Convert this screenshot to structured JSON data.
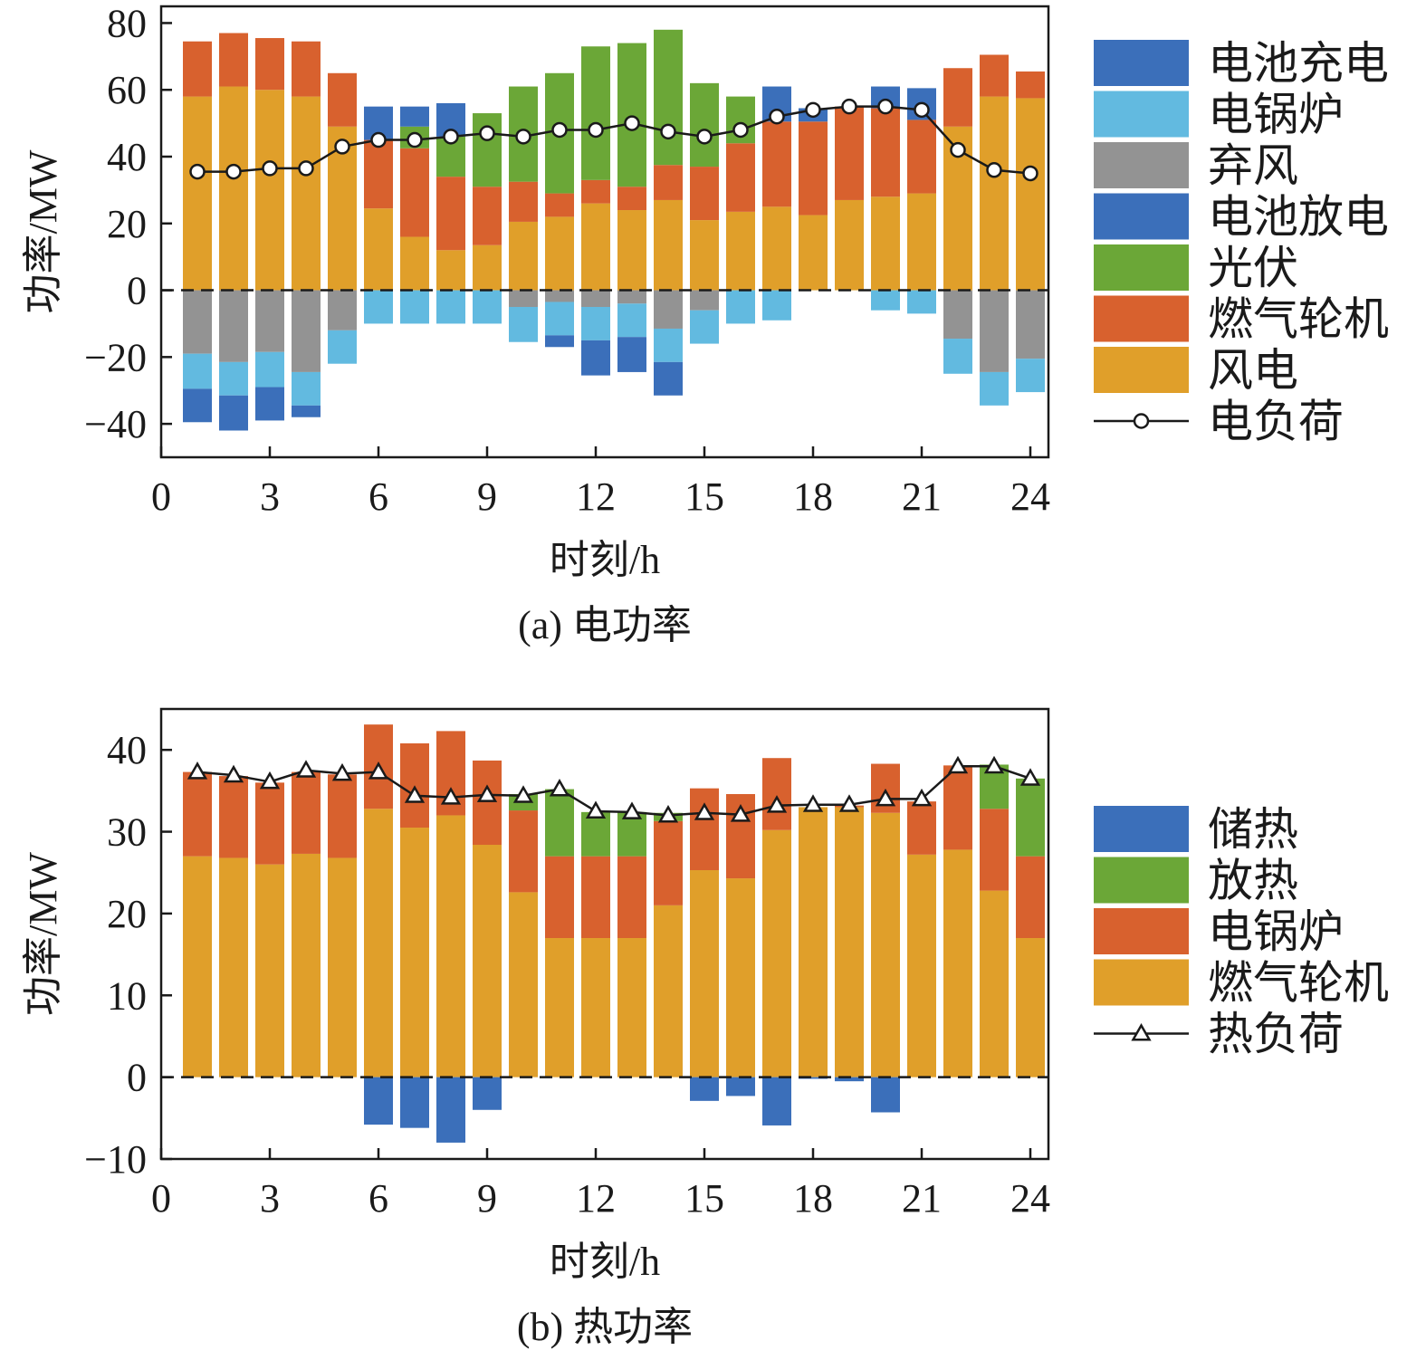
{
  "chart_data": [
    {
      "type": "bar",
      "stacked": true,
      "caption": "(a) 电功率",
      "xlabel": "时刻/h",
      "ylabel": "功率/MW",
      "xlim": [
        0,
        24.5
      ],
      "ylim": [
        -50,
        85
      ],
      "xticks": [
        0,
        3,
        6,
        9,
        12,
        15,
        18,
        21,
        24
      ],
      "yticks": [
        -40,
        -20,
        0,
        20,
        40,
        60,
        80
      ],
      "grid": false,
      "legend_position": "right",
      "x": [
        1,
        2,
        3,
        4,
        5,
        6,
        7,
        8,
        9,
        10,
        11,
        12,
        13,
        14,
        15,
        16,
        17,
        18,
        19,
        20,
        21,
        22,
        23,
        24
      ],
      "positive_series": [
        {
          "name": "风电",
          "color": "#E09F2A",
          "values": [
            58,
            61,
            60,
            58,
            49,
            24.5,
            16,
            12,
            13.5,
            20.5,
            22,
            26,
            24,
            27,
            21,
            23.5,
            25,
            22.5,
            27,
            28,
            29,
            49,
            58,
            57.5
          ]
        },
        {
          "name": "燃气轮机",
          "color": "#D8612E",
          "values": [
            16.5,
            16,
            15.5,
            16.5,
            16,
            20.5,
            26.5,
            22,
            17.5,
            12,
            7,
            7,
            7,
            10.5,
            16,
            20.5,
            25.5,
            28,
            28,
            26.5,
            22,
            17.5,
            12.5,
            8
          ]
        },
        {
          "name": "光伏",
          "color": "#6BA737",
          "values": [
            0,
            0,
            0,
            0,
            0,
            0,
            6.5,
            12,
            22,
            28.5,
            36,
            40,
            43,
            40.5,
            25,
            14,
            0,
            0,
            0,
            0,
            0,
            0,
            0,
            0
          ]
        },
        {
          "name": "电池放电",
          "color": "#3B6FBA",
          "values": [
            0,
            0,
            0,
            0,
            0,
            10,
            6,
            10,
            0,
            0,
            0,
            0,
            0,
            0,
            0,
            0,
            10.5,
            4,
            0,
            6.5,
            9.5,
            0,
            0,
            0
          ]
        }
      ],
      "negative_series": [
        {
          "name": "弃风",
          "color": "#939393",
          "values": [
            -19,
            -21.5,
            -18.5,
            -24.5,
            -12,
            0,
            0,
            0,
            0,
            -5,
            -3.5,
            -5,
            -4,
            -11.5,
            -6,
            0,
            0,
            0,
            0,
            0,
            0,
            -14.5,
            -24.5,
            -20.5
          ]
        },
        {
          "name": "电锅炉",
          "color": "#62BAE0",
          "values": [
            -10.5,
            -10,
            -10.5,
            -10,
            -10,
            -10,
            -10,
            -10,
            -10,
            -10.5,
            -10,
            -10,
            -10,
            -10,
            -10,
            -10,
            -9,
            0,
            0,
            -6,
            -7,
            -10.5,
            -10,
            -10
          ]
        },
        {
          "name": "电池充电",
          "color": "#3B6FBA",
          "values": [
            -10,
            -10.5,
            -10,
            -3.5,
            0,
            0,
            0,
            0,
            0,
            0,
            -3.5,
            -10.5,
            -10.5,
            -10,
            0,
            0,
            0,
            0,
            0,
            0,
            0,
            0,
            0,
            0
          ]
        }
      ],
      "line_series": {
        "name": "电负荷",
        "marker": "circle",
        "values": [
          35.5,
          35.5,
          36.5,
          36.5,
          43,
          45,
          45,
          46,
          47,
          46,
          48,
          48,
          50,
          47.5,
          46,
          48,
          52,
          54,
          55,
          55,
          54,
          42,
          36,
          35
        ]
      },
      "legend": [
        {
          "label": "电池充电",
          "kind": "patch",
          "color": "#3B6FBA"
        },
        {
          "label": "电锅炉",
          "kind": "patch",
          "color": "#62BAE0"
        },
        {
          "label": "弃风",
          "kind": "patch",
          "color": "#939393"
        },
        {
          "label": "电池放电",
          "kind": "patch",
          "color": "#3B6FBA"
        },
        {
          "label": "光伏",
          "kind": "patch",
          "color": "#6BA737"
        },
        {
          "label": "燃气轮机",
          "kind": "patch",
          "color": "#D8612E"
        },
        {
          "label": "风电",
          "kind": "patch",
          "color": "#E09F2A"
        },
        {
          "label": "电负荷",
          "kind": "line",
          "marker": "circle"
        }
      ]
    },
    {
      "type": "bar",
      "stacked": true,
      "caption": "(b) 热功率",
      "xlabel": "时刻/h",
      "ylabel": "功率/MW",
      "xlim": [
        0,
        24.5
      ],
      "ylim": [
        -10,
        45
      ],
      "xticks": [
        0,
        3,
        6,
        9,
        12,
        15,
        18,
        21,
        24
      ],
      "yticks": [
        -10,
        0,
        10,
        20,
        30,
        40
      ],
      "grid": false,
      "legend_position": "right",
      "x": [
        1,
        2,
        3,
        4,
        5,
        6,
        7,
        8,
        9,
        10,
        11,
        12,
        13,
        14,
        15,
        16,
        17,
        18,
        19,
        20,
        21,
        22,
        23,
        24
      ],
      "positive_series": [
        {
          "name": "燃气轮机",
          "color": "#E09F2A",
          "values": [
            27,
            26.8,
            26,
            27.3,
            26.8,
            32.8,
            30.5,
            32,
            28.4,
            22.6,
            17,
            17,
            17,
            21,
            25.3,
            24.3,
            30.2,
            33,
            33,
            32.3,
            27.2,
            27.8,
            22.8,
            17
          ]
        },
        {
          "name": "电锅炉",
          "color": "#D8612E",
          "values": [
            10.3,
            10,
            10,
            10,
            10.2,
            10.3,
            10.3,
            10.3,
            10.3,
            10,
            10,
            10,
            10,
            10.3,
            10,
            10.3,
            8.8,
            0,
            0.2,
            6,
            6.5,
            10.3,
            10,
            10
          ]
        },
        {
          "name": "放热",
          "color": "#6BA737",
          "values": [
            0,
            0,
            0,
            0,
            0,
            0,
            0,
            0,
            0,
            2,
            8.2,
            5.4,
            5.4,
            1,
            0,
            0,
            0,
            0,
            0,
            0,
            0,
            0,
            5.4,
            9.5
          ]
        }
      ],
      "negative_series": [
        {
          "name": "储热",
          "color": "#3B6FBA",
          "values": [
            0,
            0,
            0,
            0,
            0,
            -5.8,
            -6.2,
            -8,
            -4,
            0,
            0,
            0,
            0,
            0,
            -2.9,
            -2.3,
            -5.9,
            -0.2,
            -0.5,
            -4.3,
            0,
            0,
            0,
            0
          ]
        }
      ],
      "line_series": {
        "name": "热负荷",
        "marker": "triangle",
        "values": [
          37.3,
          36.9,
          36.1,
          37.5,
          37.1,
          37.3,
          34.4,
          34.2,
          34.5,
          34.4,
          35.2,
          32.5,
          32.4,
          32,
          32.3,
          32.1,
          33.2,
          33.3,
          33.3,
          34,
          34,
          38,
          38,
          36.5
        ]
      },
      "legend": [
        {
          "label": "储热",
          "kind": "patch",
          "color": "#3B6FBA"
        },
        {
          "label": "放热",
          "kind": "patch",
          "color": "#6BA737"
        },
        {
          "label": "电锅炉",
          "kind": "patch",
          "color": "#D8612E"
        },
        {
          "label": "燃气轮机",
          "kind": "patch",
          "color": "#E09F2A"
        },
        {
          "label": "热负荷",
          "kind": "line",
          "marker": "triangle"
        }
      ]
    }
  ]
}
